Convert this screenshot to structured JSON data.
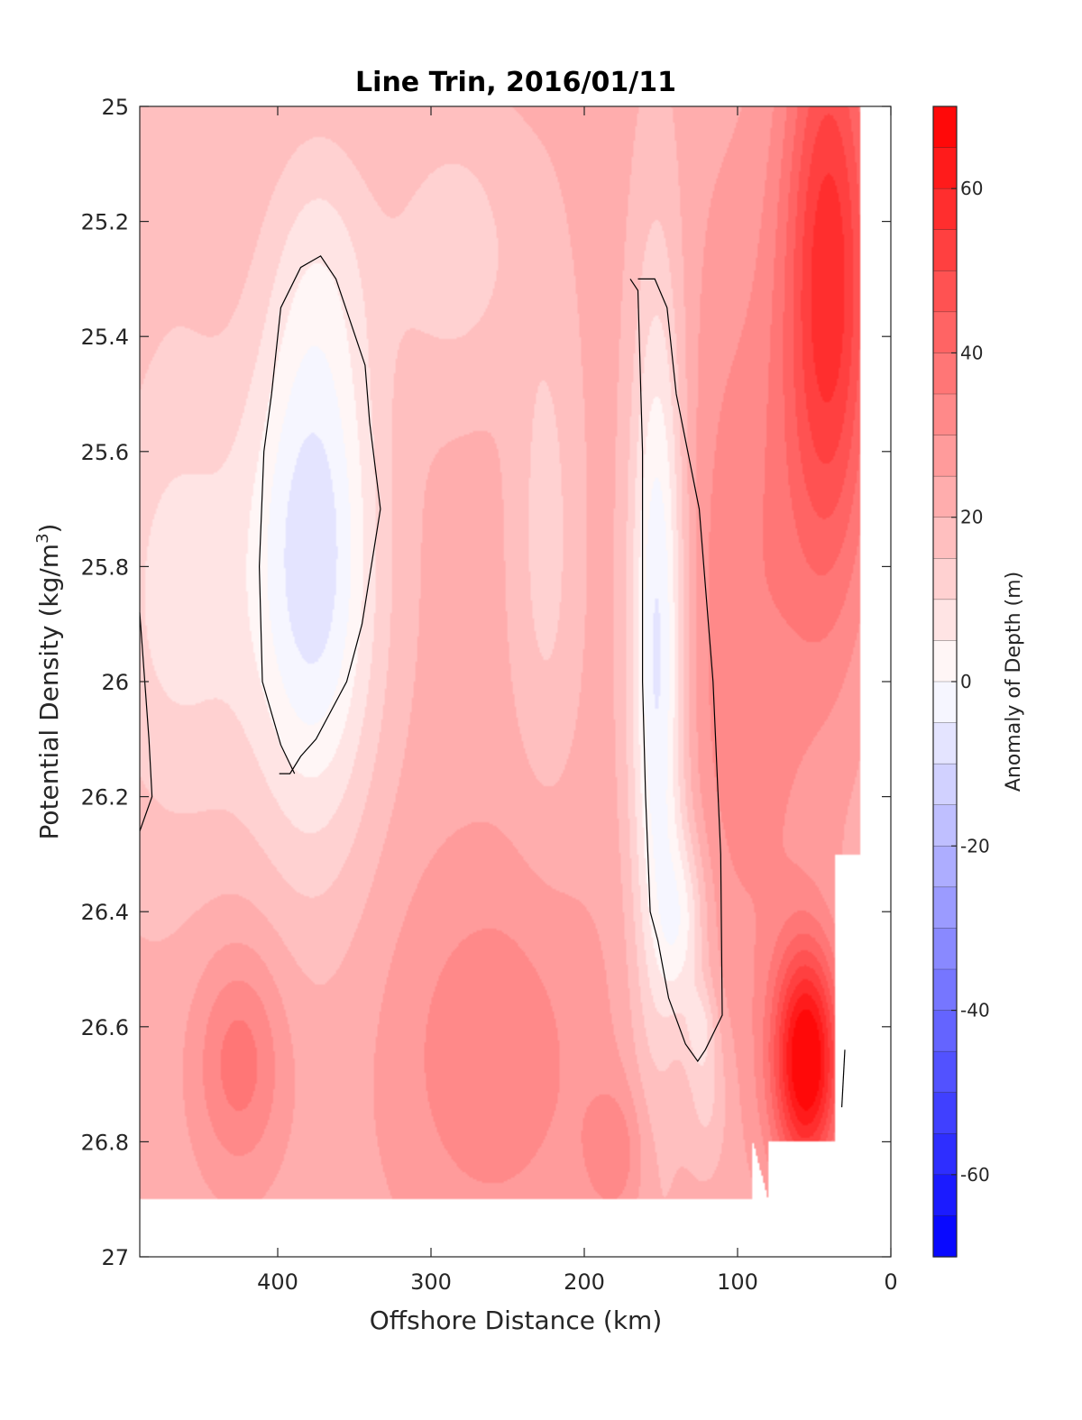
{
  "chart_data": {
    "type": "heatmap",
    "title": "Line Trin, 2016/01/11",
    "xlabel": "Offshore Distance (km)",
    "ylabel_main": "Potential Density (kg/m",
    "ylabel_sup": "3",
    "ylabel_close": ")",
    "colorbar_label": "Anomaly of Depth (m)",
    "xlim": [
      490,
      0
    ],
    "xticks": [
      400,
      300,
      200,
      100,
      0
    ],
    "xtick_labels": [
      "400",
      "300",
      "200",
      "100",
      "0"
    ],
    "ylim": [
      25,
      27
    ],
    "yticks": [
      25,
      25.2,
      25.4,
      25.6,
      25.8,
      26,
      26.2,
      26.4,
      26.6,
      26.8,
      27
    ],
    "ytick_labels": [
      "25",
      "25.2",
      "25.4",
      "25.6",
      "25.8",
      "26",
      "26.2",
      "26.4",
      "26.6",
      "26.8",
      "27"
    ],
    "clim": [
      -70,
      70
    ],
    "cticks": [
      60,
      40,
      20,
      0,
      -20,
      -40,
      -60
    ],
    "ctick_labels": [
      "60",
      "40",
      "20",
      "0",
      "-20",
      "-40",
      "-60"
    ],
    "contour_step": 5,
    "colormap": {
      "low": "#0000ff",
      "mid": "#ffffff",
      "high": "#ff0000"
    },
    "data_extent": {
      "x_min_km": 20,
      "sigma_max_offshore": 26.9,
      "sigma_max_nearshore": 26.8
    },
    "zero_contours": [
      {
        "name": "offshore-eddy",
        "x": [
          389,
          398,
          410,
          412,
          409,
          404,
          398,
          385,
          372,
          362,
          343,
          340,
          333,
          345,
          355,
          375,
          385,
          392,
          399
        ],
        "y": [
          26.16,
          26.11,
          26.0,
          25.8,
          25.6,
          25.5,
          25.35,
          25.28,
          25.26,
          25.3,
          25.45,
          25.55,
          25.7,
          25.9,
          26.0,
          26.1,
          26.13,
          26.16,
          26.16
        ]
      },
      {
        "name": "inshore-eddy",
        "x": [
          170,
          165,
          162,
          162,
          160,
          157,
          152,
          145,
          134,
          126,
          121,
          110,
          111,
          116,
          125,
          140,
          146,
          154,
          165
        ],
        "y": [
          25.3,
          25.32,
          25.6,
          26.0,
          26.2,
          26.4,
          26.45,
          26.55,
          26.63,
          26.66,
          26.64,
          26.58,
          26.3,
          26.0,
          25.7,
          25.5,
          25.35,
          25.3,
          25.3
        ]
      },
      {
        "name": "western-edge",
        "x": [
          490,
          484,
          482,
          490
        ],
        "y": [
          25.88,
          26.1,
          26.2,
          26.26
        ]
      },
      {
        "name": "shelf-edge",
        "x": [
          30,
          32
        ],
        "y": [
          26.64,
          26.74
        ]
      }
    ],
    "anomaly_field": [
      {
        "name": "background",
        "value": 22
      },
      {
        "name": "offshore-mixed-high",
        "x": 470,
        "y": 25.1,
        "sx": 40,
        "sy": 0.35,
        "value": -4
      },
      {
        "name": "offshore-eddy-core",
        "x": 376,
        "y": 25.78,
        "sx": 42,
        "sy": 0.5,
        "value": -30
      },
      {
        "name": "offshore-eddy-cap",
        "x": 372,
        "y": 25.25,
        "sx": 35,
        "sy": 0.25,
        "value": -6
      },
      {
        "name": "western-shallow-low",
        "x": 465,
        "y": 25.85,
        "sx": 55,
        "sy": 0.45,
        "value": -14
      },
      {
        "name": "mid-upper-low",
        "x": 285,
        "y": 25.25,
        "sx": 45,
        "sy": 0.25,
        "value": -10
      },
      {
        "name": "mid-column-low",
        "x": 225,
        "y": 25.75,
        "sx": 22,
        "sy": 0.45,
        "value": -9
      },
      {
        "name": "inshore-eddy-core",
        "x": 152,
        "y": 25.95,
        "sx": 18,
        "sy": 0.65,
        "value": -30
      },
      {
        "name": "inshore-eddy-tail",
        "x": 135,
        "y": 26.42,
        "sx": 16,
        "sy": 0.16,
        "value": -16
      },
      {
        "name": "inshore-eddy-base",
        "x": 124,
        "y": 26.6,
        "sx": 10,
        "sy": 0.08,
        "value": -10
      },
      {
        "name": "eddy-rim-low",
        "x": 120,
        "y": 26.72,
        "sx": 14,
        "sy": 0.14,
        "value": -10
      },
      {
        "name": "western-deep-high",
        "x": 425,
        "y": 26.66,
        "sx": 30,
        "sy": 0.2,
        "value": 16
      },
      {
        "name": "central-deep-high",
        "x": 260,
        "y": 26.65,
        "sx": 70,
        "sy": 0.35,
        "value": 12
      },
      {
        "name": "deep-180km-high",
        "x": 180,
        "y": 26.82,
        "sx": 20,
        "sy": 0.12,
        "value": 10
      },
      {
        "name": "coastal-upper-high",
        "x": 40,
        "y": 25.3,
        "sx": 30,
        "sy": 0.55,
        "value": 36
      },
      {
        "name": "coastal-deep-high",
        "x": 55,
        "y": 26.66,
        "sx": 22,
        "sy": 0.2,
        "value": 50
      },
      {
        "name": "slope-high",
        "x": 95,
        "y": 25.9,
        "sx": 45,
        "sy": 0.7,
        "value": 12
      }
    ]
  }
}
